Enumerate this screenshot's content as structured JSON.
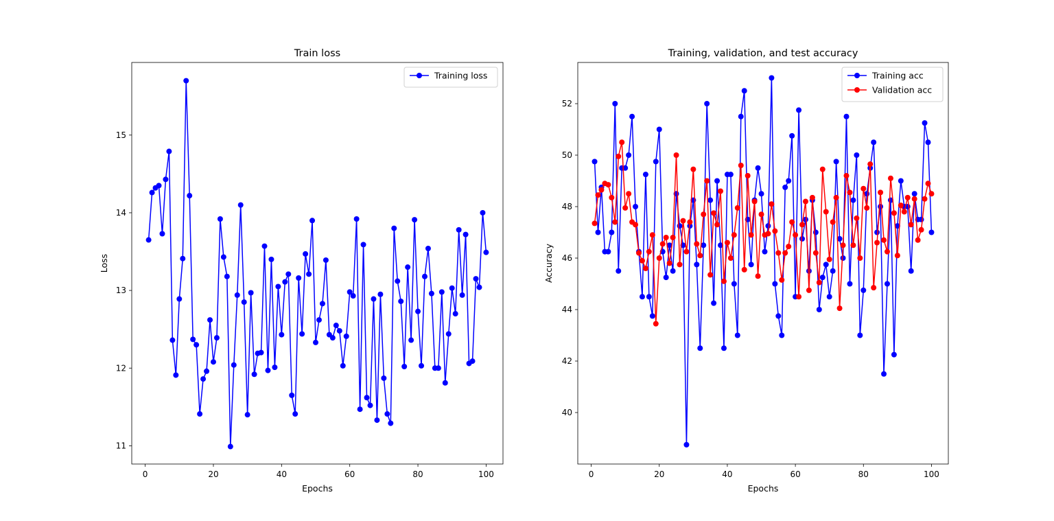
{
  "figure": {
    "panels": 2
  },
  "chart_data": [
    {
      "type": "line",
      "title": "Train loss",
      "xlabel": "Epochs",
      "ylabel": "Loss",
      "xlim": [
        -3.95,
        104.95
      ],
      "ylim": [
        10.765,
        15.935
      ],
      "xticks": [
        0,
        20,
        40,
        60,
        80,
        100
      ],
      "yticks": [
        11,
        12,
        13,
        14,
        15
      ],
      "legend": "top-right",
      "grid": false,
      "series": [
        {
          "name": "Training loss",
          "color": "#0000ff",
          "marker": "circle",
          "x": [
            1,
            2,
            3,
            4,
            5,
            6,
            7,
            8,
            9,
            10,
            11,
            12,
            13,
            14,
            15,
            16,
            17,
            18,
            19,
            20,
            21,
            22,
            23,
            24,
            25,
            26,
            27,
            28,
            29,
            30,
            31,
            32,
            33,
            34,
            35,
            36,
            37,
            38,
            39,
            40,
            41,
            42,
            43,
            44,
            45,
            46,
            47,
            48,
            49,
            50,
            51,
            52,
            53,
            54,
            55,
            56,
            57,
            58,
            59,
            60,
            61,
            62,
            63,
            64,
            65,
            66,
            67,
            68,
            69,
            70,
            71,
            72,
            73,
            74,
            75,
            76,
            77,
            78,
            79,
            80,
            81,
            82,
            83,
            84,
            85,
            86,
            87,
            88,
            89,
            90,
            91,
            92,
            93,
            94,
            95,
            96,
            97,
            98,
            99,
            100
          ],
          "y": [
            13.65,
            14.26,
            14.32,
            14.35,
            13.73,
            14.43,
            14.79,
            12.36,
            11.91,
            12.89,
            13.41,
            15.7,
            14.22,
            12.37,
            12.3,
            11.41,
            11.86,
            11.96,
            12.62,
            12.08,
            12.39,
            13.92,
            13.43,
            13.18,
            10.99,
            12.04,
            12.94,
            14.1,
            12.85,
            11.4,
            12.97,
            11.92,
            12.19,
            12.2,
            13.57,
            11.97,
            13.4,
            12.01,
            13.05,
            12.43,
            13.11,
            13.21,
            11.65,
            11.41,
            13.16,
            12.44,
            13.47,
            13.21,
            13.9,
            12.33,
            12.62,
            12.83,
            13.39,
            12.43,
            12.39,
            12.55,
            12.48,
            12.03,
            12.41,
            12.98,
            12.93,
            13.92,
            11.47,
            13.59,
            11.62,
            11.52,
            12.89,
            11.33,
            12.95,
            11.87,
            11.41,
            11.29,
            13.8,
            13.12,
            12.86,
            12.02,
            13.3,
            12.36,
            13.91,
            12.73,
            12.03,
            13.18,
            13.54,
            12.96,
            12.0,
            12.0,
            12.98,
            11.81,
            12.44,
            13.03,
            12.7,
            13.78,
            12.94,
            13.72,
            12.06,
            12.09,
            13.15,
            13.04,
            14.0,
            13.49
          ]
        }
      ]
    },
    {
      "type": "line",
      "title": "Training, validation, and test accuracy",
      "xlabel": "Epochs",
      "ylabel": "Accuracy",
      "xlim": [
        -3.95,
        104.95
      ],
      "ylim": [
        38.0,
        53.6
      ],
      "xticks": [
        0,
        20,
        40,
        60,
        80,
        100
      ],
      "yticks": [
        40,
        42,
        44,
        46,
        48,
        50,
        52
      ],
      "legend": "top-right",
      "grid": false,
      "series": [
        {
          "name": "Training acc",
          "color": "#0000ff",
          "marker": "circle",
          "x": [
            1,
            2,
            3,
            4,
            5,
            6,
            7,
            8,
            9,
            10,
            11,
            12,
            13,
            14,
            15,
            16,
            17,
            18,
            19,
            20,
            21,
            22,
            23,
            24,
            25,
            26,
            27,
            28,
            29,
            30,
            31,
            32,
            33,
            34,
            35,
            36,
            37,
            38,
            39,
            40,
            41,
            42,
            43,
            44,
            45,
            46,
            47,
            48,
            49,
            50,
            51,
            52,
            53,
            54,
            55,
            56,
            57,
            58,
            59,
            60,
            61,
            62,
            63,
            64,
            65,
            66,
            67,
            68,
            69,
            70,
            71,
            72,
            73,
            74,
            75,
            76,
            77,
            78,
            79,
            80,
            81,
            82,
            83,
            84,
            85,
            86,
            87,
            88,
            89,
            90,
            91,
            92,
            93,
            94,
            95,
            96,
            97,
            98,
            99,
            100
          ],
          "y": [
            49.75,
            47.0,
            48.75,
            46.25,
            46.25,
            47.0,
            52.0,
            45.5,
            49.5,
            49.5,
            50.0,
            51.5,
            48.0,
            46.25,
            44.5,
            49.25,
            44.5,
            43.75,
            49.75,
            51.0,
            46.25,
            45.25,
            46.5,
            45.5,
            48.5,
            47.25,
            46.5,
            38.75,
            47.25,
            48.25,
            45.75,
            42.5,
            46.5,
            52.0,
            48.25,
            44.25,
            49.0,
            46.5,
            42.5,
            49.25,
            49.25,
            45.0,
            43.0,
            51.5,
            52.5,
            47.5,
            45.75,
            48.25,
            49.5,
            48.5,
            46.25,
            47.25,
            53.0,
            45.0,
            43.75,
            43.0,
            48.75,
            49.0,
            50.75,
            44.5,
            51.75,
            46.75,
            47.5,
            45.5,
            48.25,
            47.0,
            44.0,
            45.25,
            45.75,
            44.5,
            45.5,
            49.75,
            46.75,
            46.0,
            51.5,
            45.0,
            48.25,
            50.0,
            43.0,
            44.75,
            48.5,
            49.5,
            50.5,
            47.0,
            48.0,
            41.5,
            45.0,
            48.25,
            42.25,
            47.25,
            49.0,
            48.0,
            48.0,
            45.5,
            48.5,
            47.5,
            47.5,
            51.25,
            50.5,
            47.0
          ]
        },
        {
          "name": "Validation acc",
          "color": "#ff0000",
          "marker": "circle",
          "x": [
            1,
            2,
            3,
            4,
            5,
            6,
            7,
            8,
            9,
            10,
            11,
            12,
            13,
            14,
            15,
            16,
            17,
            18,
            19,
            20,
            21,
            22,
            23,
            24,
            25,
            26,
            27,
            28,
            29,
            30,
            31,
            32,
            33,
            34,
            35,
            36,
            37,
            38,
            39,
            40,
            41,
            42,
            43,
            44,
            45,
            46,
            47,
            48,
            49,
            50,
            51,
            52,
            53,
            54,
            55,
            56,
            57,
            58,
            59,
            60,
            61,
            62,
            63,
            64,
            65,
            66,
            67,
            68,
            69,
            70,
            71,
            72,
            73,
            74,
            75,
            76,
            77,
            78,
            79,
            80,
            81,
            82,
            83,
            84,
            85,
            86,
            87,
            88,
            89,
            90,
            91,
            92,
            93,
            94,
            95,
            96,
            97,
            98,
            99,
            100
          ],
          "y": [
            47.35,
            48.45,
            48.65,
            48.9,
            48.85,
            48.35,
            47.4,
            49.95,
            50.5,
            47.95,
            48.5,
            47.4,
            47.3,
            46.2,
            45.9,
            45.6,
            46.25,
            46.9,
            43.45,
            46.0,
            46.55,
            46.8,
            45.8,
            46.8,
            50.0,
            45.75,
            47.45,
            46.25,
            47.4,
            49.45,
            46.55,
            46.1,
            47.7,
            49.0,
            45.35,
            47.75,
            47.3,
            48.6,
            45.1,
            46.6,
            46.0,
            46.9,
            47.95,
            49.6,
            45.55,
            49.2,
            46.9,
            48.2,
            45.3,
            47.7,
            46.9,
            46.95,
            48.1,
            47.05,
            46.2,
            45.15,
            46.2,
            46.45,
            47.4,
            46.9,
            44.5,
            47.3,
            48.2,
            44.75,
            48.35,
            46.2,
            45.05,
            49.45,
            47.8,
            45.95,
            47.4,
            48.35,
            44.05,
            46.5,
            49.2,
            48.55,
            46.5,
            47.55,
            46.0,
            48.7,
            47.95,
            49.65,
            44.85,
            46.6,
            48.55,
            46.7,
            46.25,
            49.1,
            47.75,
            46.1,
            48.05,
            47.8,
            48.35,
            47.3,
            48.3,
            46.7,
            47.1,
            48.3,
            48.9,
            48.5
          ]
        }
      ]
    }
  ]
}
